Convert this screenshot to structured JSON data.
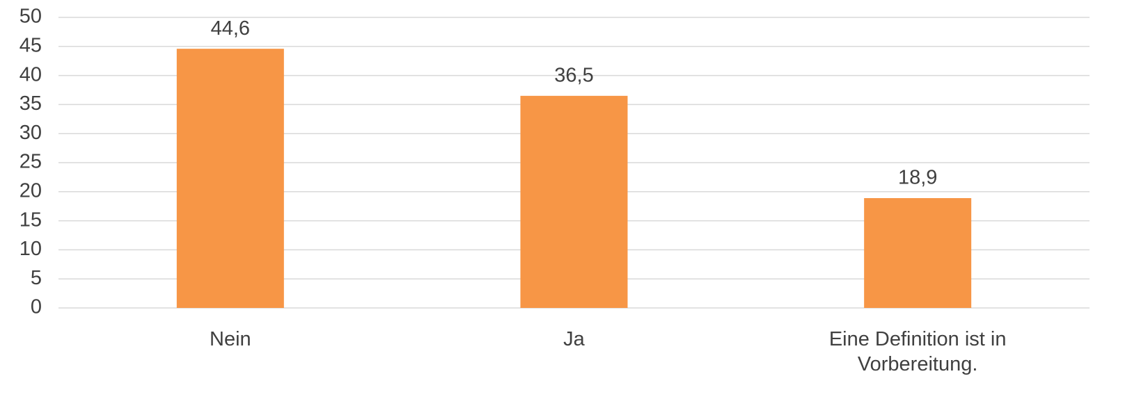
{
  "chart_data": {
    "type": "bar",
    "categories": [
      "Nein",
      "Ja",
      "Eine Definition ist in Vorbereitung."
    ],
    "values": [
      44.6,
      36.5,
      18.9
    ],
    "value_labels": [
      "44,6",
      "36,5",
      "18,9"
    ],
    "color": "#f79646",
    "ylim": [
      0,
      50
    ],
    "yticks": [
      0,
      5,
      10,
      15,
      20,
      25,
      30,
      35,
      40,
      45,
      50
    ],
    "grid": true
  }
}
